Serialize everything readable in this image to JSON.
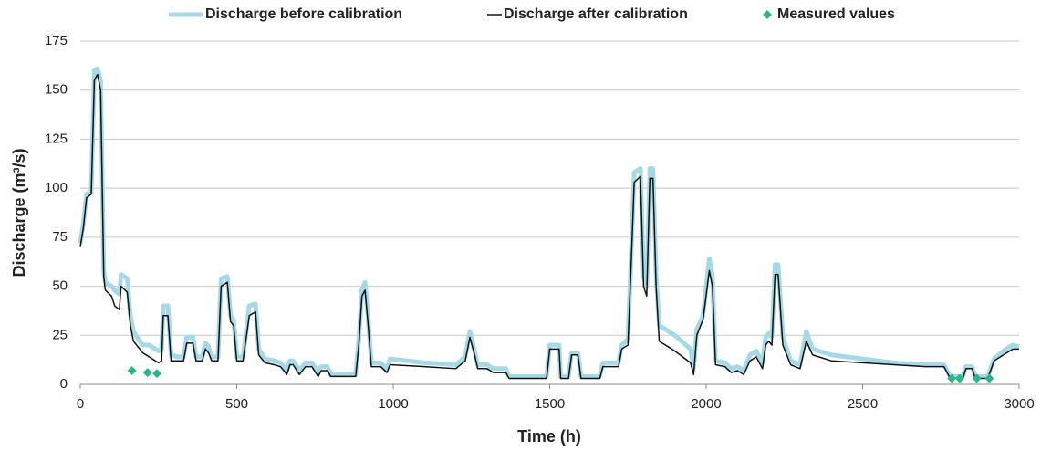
{
  "chart_data": {
    "type": "line",
    "ylabel": "Discharge (m³/s)",
    "xlabel": "Time (h)",
    "xlim": [
      0,
      3000
    ],
    "xticks": [
      0,
      500,
      1000,
      1500,
      2000,
      2500,
      3000
    ],
    "ylim": [
      0,
      175
    ],
    "yticks": [
      0,
      25,
      50,
      75,
      100,
      125,
      150,
      175
    ],
    "grid": true,
    "legend": "top",
    "series": [
      {
        "name": "Discharge before calibration",
        "color": "#a6d9e6",
        "mark": "line",
        "line_width": 5,
        "x": [
          0,
          10,
          20,
          35,
          45,
          55,
          65,
          75,
          80,
          100,
          110,
          125,
          130,
          150,
          160,
          170,
          190,
          200,
          220,
          240,
          250,
          260,
          265,
          280,
          290,
          310,
          330,
          340,
          360,
          370,
          390,
          400,
          410,
          420,
          440,
          450,
          470,
          480,
          490,
          500,
          520,
          540,
          560,
          570,
          590,
          620,
          640,
          660,
          670,
          680,
          700,
          720,
          740,
          760,
          770,
          790,
          800,
          850,
          880,
          890,
          900,
          910,
          920,
          930,
          960,
          980,
          990,
          1100,
          1200,
          1230,
          1245,
          1260,
          1270,
          1300,
          1320,
          1360,
          1370,
          1450,
          1490,
          1500,
          1530,
          1535,
          1560,
          1570,
          1590,
          1600,
          1660,
          1670,
          1700,
          1720,
          1730,
          1750,
          1760,
          1770,
          1790,
          1800,
          1810,
          1820,
          1830,
          1840,
          1850,
          1900,
          1950,
          1960,
          1970,
          1990,
          2010,
          2020,
          2030,
          2060,
          2080,
          2100,
          2120,
          2140,
          2160,
          2180,
          2190,
          2200,
          2210,
          2220,
          2230,
          2245,
          2270,
          2300,
          2320,
          2340,
          2400,
          2500,
          2600,
          2700,
          2760,
          2780,
          2820,
          2830,
          2850,
          2860,
          2900,
          2920,
          2950,
          2980,
          3000
        ],
        "values": [
          72,
          82,
          97,
          98,
          160,
          161,
          155,
          58,
          52,
          50,
          48,
          46,
          56,
          54,
          35,
          27,
          22,
          20,
          20,
          18,
          17,
          18,
          40,
          40,
          15,
          14,
          14,
          24,
          24,
          14,
          14,
          21,
          19,
          14,
          14,
          54,
          55,
          35,
          33,
          14,
          14,
          40,
          41,
          18,
          13,
          12,
          11,
          7,
          12,
          12,
          7,
          11,
          11,
          6,
          9,
          9,
          5,
          5,
          5,
          23,
          48,
          52,
          33,
          11,
          11,
          8,
          13,
          11,
          10,
          14,
          27,
          17,
          10,
          10,
          8,
          8,
          4,
          4,
          4,
          20,
          20,
          4,
          4,
          16,
          16,
          4,
          4,
          11,
          11,
          11,
          20,
          23,
          65,
          108,
          110,
          55,
          50,
          110,
          110,
          55,
          30,
          25,
          18,
          8,
          28,
          35,
          64,
          55,
          12,
          11,
          8,
          9,
          7,
          15,
          17,
          11,
          24,
          26,
          24,
          61,
          61,
          24,
          12,
          10,
          27,
          18,
          15,
          13,
          11,
          10,
          10,
          4,
          4,
          9,
          9,
          4,
          4,
          13,
          17,
          20,
          19
        ]
      },
      {
        "name": "Discharge after calibration",
        "color": "#111111",
        "mark": "line",
        "line_width": 1.5,
        "x": [
          0,
          10,
          20,
          35,
          45,
          55,
          65,
          75,
          80,
          100,
          110,
          125,
          130,
          150,
          160,
          170,
          190,
          200,
          220,
          240,
          250,
          260,
          265,
          280,
          290,
          310,
          330,
          340,
          360,
          370,
          390,
          400,
          410,
          420,
          440,
          450,
          470,
          480,
          490,
          500,
          520,
          540,
          560,
          570,
          590,
          620,
          640,
          660,
          670,
          680,
          700,
          720,
          740,
          760,
          770,
          790,
          800,
          850,
          880,
          890,
          900,
          910,
          920,
          930,
          960,
          980,
          990,
          1100,
          1200,
          1230,
          1245,
          1260,
          1270,
          1300,
          1320,
          1360,
          1370,
          1450,
          1490,
          1500,
          1530,
          1535,
          1560,
          1570,
          1590,
          1600,
          1660,
          1670,
          1700,
          1720,
          1730,
          1750,
          1760,
          1770,
          1790,
          1800,
          1810,
          1820,
          1830,
          1840,
          1850,
          1900,
          1950,
          1960,
          1970,
          1990,
          2010,
          2020,
          2030,
          2060,
          2080,
          2100,
          2120,
          2140,
          2160,
          2180,
          2190,
          2200,
          2210,
          2220,
          2230,
          2245,
          2270,
          2300,
          2320,
          2340,
          2400,
          2500,
          2600,
          2700,
          2760,
          2780,
          2820,
          2830,
          2850,
          2860,
          2900,
          2920,
          2950,
          2980,
          3000
        ],
        "values": [
          70,
          80,
          95,
          97,
          155,
          158,
          150,
          55,
          48,
          45,
          40,
          38,
          50,
          47,
          30,
          22,
          18,
          16,
          14,
          12,
          11,
          12,
          35,
          35,
          12,
          12,
          12,
          21,
          21,
          12,
          12,
          18,
          16,
          12,
          12,
          50,
          52,
          32,
          30,
          12,
          12,
          35,
          37,
          15,
          11,
          10,
          9,
          5,
          10,
          10,
          5,
          9,
          9,
          4,
          7,
          7,
          4,
          4,
          4,
          20,
          45,
          48,
          30,
          9,
          9,
          6,
          10,
          9,
          8,
          12,
          24,
          15,
          8,
          8,
          6,
          6,
          3,
          3,
          3,
          18,
          18,
          3,
          3,
          15,
          15,
          3,
          3,
          9,
          9,
          9,
          18,
          20,
          60,
          103,
          106,
          50,
          45,
          105,
          105,
          50,
          22,
          17,
          11,
          5,
          25,
          33,
          58,
          50,
          10,
          9,
          6,
          7,
          5,
          12,
          14,
          8,
          20,
          22,
          20,
          56,
          56,
          20,
          10,
          8,
          22,
          15,
          12,
          11,
          10,
          9,
          9,
          3,
          3,
          8,
          8,
          3,
          3,
          12,
          15,
          18,
          18
        ]
      },
      {
        "name": "Measured values",
        "color": "#2bb58a",
        "mark": "diamond",
        "x": [
          165,
          215,
          245,
          2785,
          2810,
          2865,
          2905
        ],
        "values": [
          7,
          6,
          5.5,
          3,
          3,
          3,
          3
        ]
      }
    ]
  }
}
